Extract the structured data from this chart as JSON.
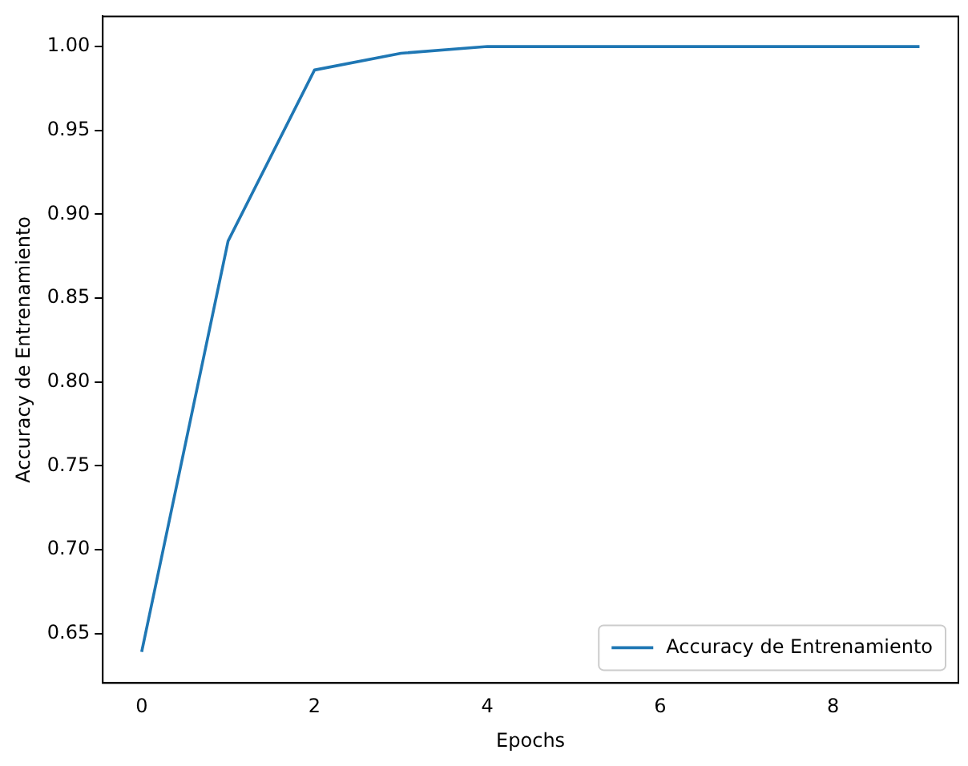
{
  "chart_data": {
    "type": "line",
    "xlabel": "Epochs",
    "ylabel": "Accuracy de Entrenamiento",
    "x": [
      0,
      1,
      2,
      3,
      4,
      5,
      6,
      7,
      8,
      9
    ],
    "series": [
      {
        "name": "Accuracy de Entrenamiento",
        "color": "#1f77b4",
        "values": [
          0.639,
          0.884,
          0.986,
          0.996,
          1.0,
          1.0,
          1.0,
          1.0,
          1.0,
          1.0
        ]
      }
    ],
    "xlim": [
      -0.45,
      9.45
    ],
    "xticks": [
      0,
      2,
      4,
      6,
      8
    ],
    "ylim": [
      0.6205,
      1.018
    ],
    "yticks": [
      {
        "value": 0.65,
        "label": "0.65"
      },
      {
        "value": 0.7,
        "label": "0.70"
      },
      {
        "value": 0.75,
        "label": "0.75"
      },
      {
        "value": 0.8,
        "label": "0.80"
      },
      {
        "value": 0.85,
        "label": "0.85"
      },
      {
        "value": 0.9,
        "label": "0.90"
      },
      {
        "value": 0.95,
        "label": "0.95"
      },
      {
        "value": 1.0,
        "label": "1.00"
      }
    ],
    "legend": "bottom right",
    "grid": false,
    "marker": "none",
    "line_style": "solid"
  }
}
